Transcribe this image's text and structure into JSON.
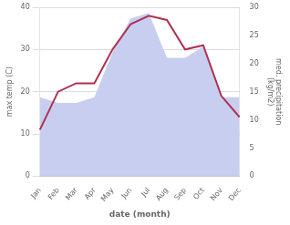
{
  "chart_data": {
    "type": "line",
    "xlabel": "date (month)",
    "ylabel": "max temp (C)",
    "y2label": "med. precipitation\n(kg/m2)",
    "categories": [
      "Jan",
      "Feb",
      "Mar",
      "Apr",
      "May",
      "Jun",
      "Jul",
      "Aug",
      "Sep",
      "Oct",
      "Nov",
      "Dec"
    ],
    "series": [
      {
        "type": "area",
        "color": "#c8cef0",
        "axis": "y2",
        "values": [
          14,
          13,
          13,
          14,
          22,
          28,
          29,
          21,
          21,
          23,
          14,
          14
        ]
      },
      {
        "type": "line",
        "color": "#b03050",
        "values": [
          11,
          20,
          22,
          22,
          30,
          36,
          38,
          37,
          30,
          31,
          19,
          14
        ]
      }
    ],
    "ylim": [
      0,
      40
    ],
    "yticks": [
      0,
      10,
      20,
      30,
      40
    ],
    "y2lim": [
      0,
      30
    ],
    "y2ticks": [
      0,
      5,
      10,
      15,
      20,
      25,
      30
    ],
    "grid": true
  }
}
